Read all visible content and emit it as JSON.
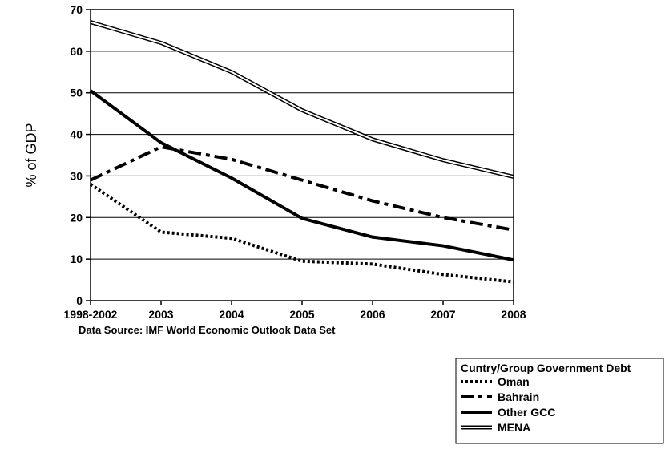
{
  "chart_data": {
    "type": "line",
    "ylabel": "% of GDP",
    "ylim": [
      0,
      70
    ],
    "yticks": [
      0,
      10,
      20,
      30,
      40,
      50,
      60,
      70
    ],
    "categories": [
      "1998-2002",
      "2003",
      "2004",
      "2005",
      "2006",
      "2007",
      "2008"
    ],
    "grid": "horizontal",
    "source_note": "Data Source: IMF World Economic Outlook Data Set",
    "legend": {
      "title": "Cuntry/Group Government Debt",
      "placement": "bottom-right"
    },
    "series": [
      {
        "name": "Oman",
        "style": "dotted",
        "values": [
          28,
          16.5,
          15,
          9.5,
          8.8,
          6.3,
          4.5
        ]
      },
      {
        "name": "Bahrain",
        "style": "dashdot",
        "values": [
          29,
          37,
          34,
          29,
          24,
          20,
          17
        ]
      },
      {
        "name": "Other GCC",
        "style": "solid-thick",
        "values": [
          50.5,
          38,
          29.5,
          19.8,
          15.3,
          13.2,
          9.8
        ]
      },
      {
        "name": "MENA",
        "style": "double",
        "values": [
          67,
          62,
          55,
          45.8,
          38.8,
          33.8,
          29.8
        ]
      }
    ]
  },
  "colors": {
    "line": "#000000",
    "grid": "#000000",
    "background": "#ffffff"
  }
}
